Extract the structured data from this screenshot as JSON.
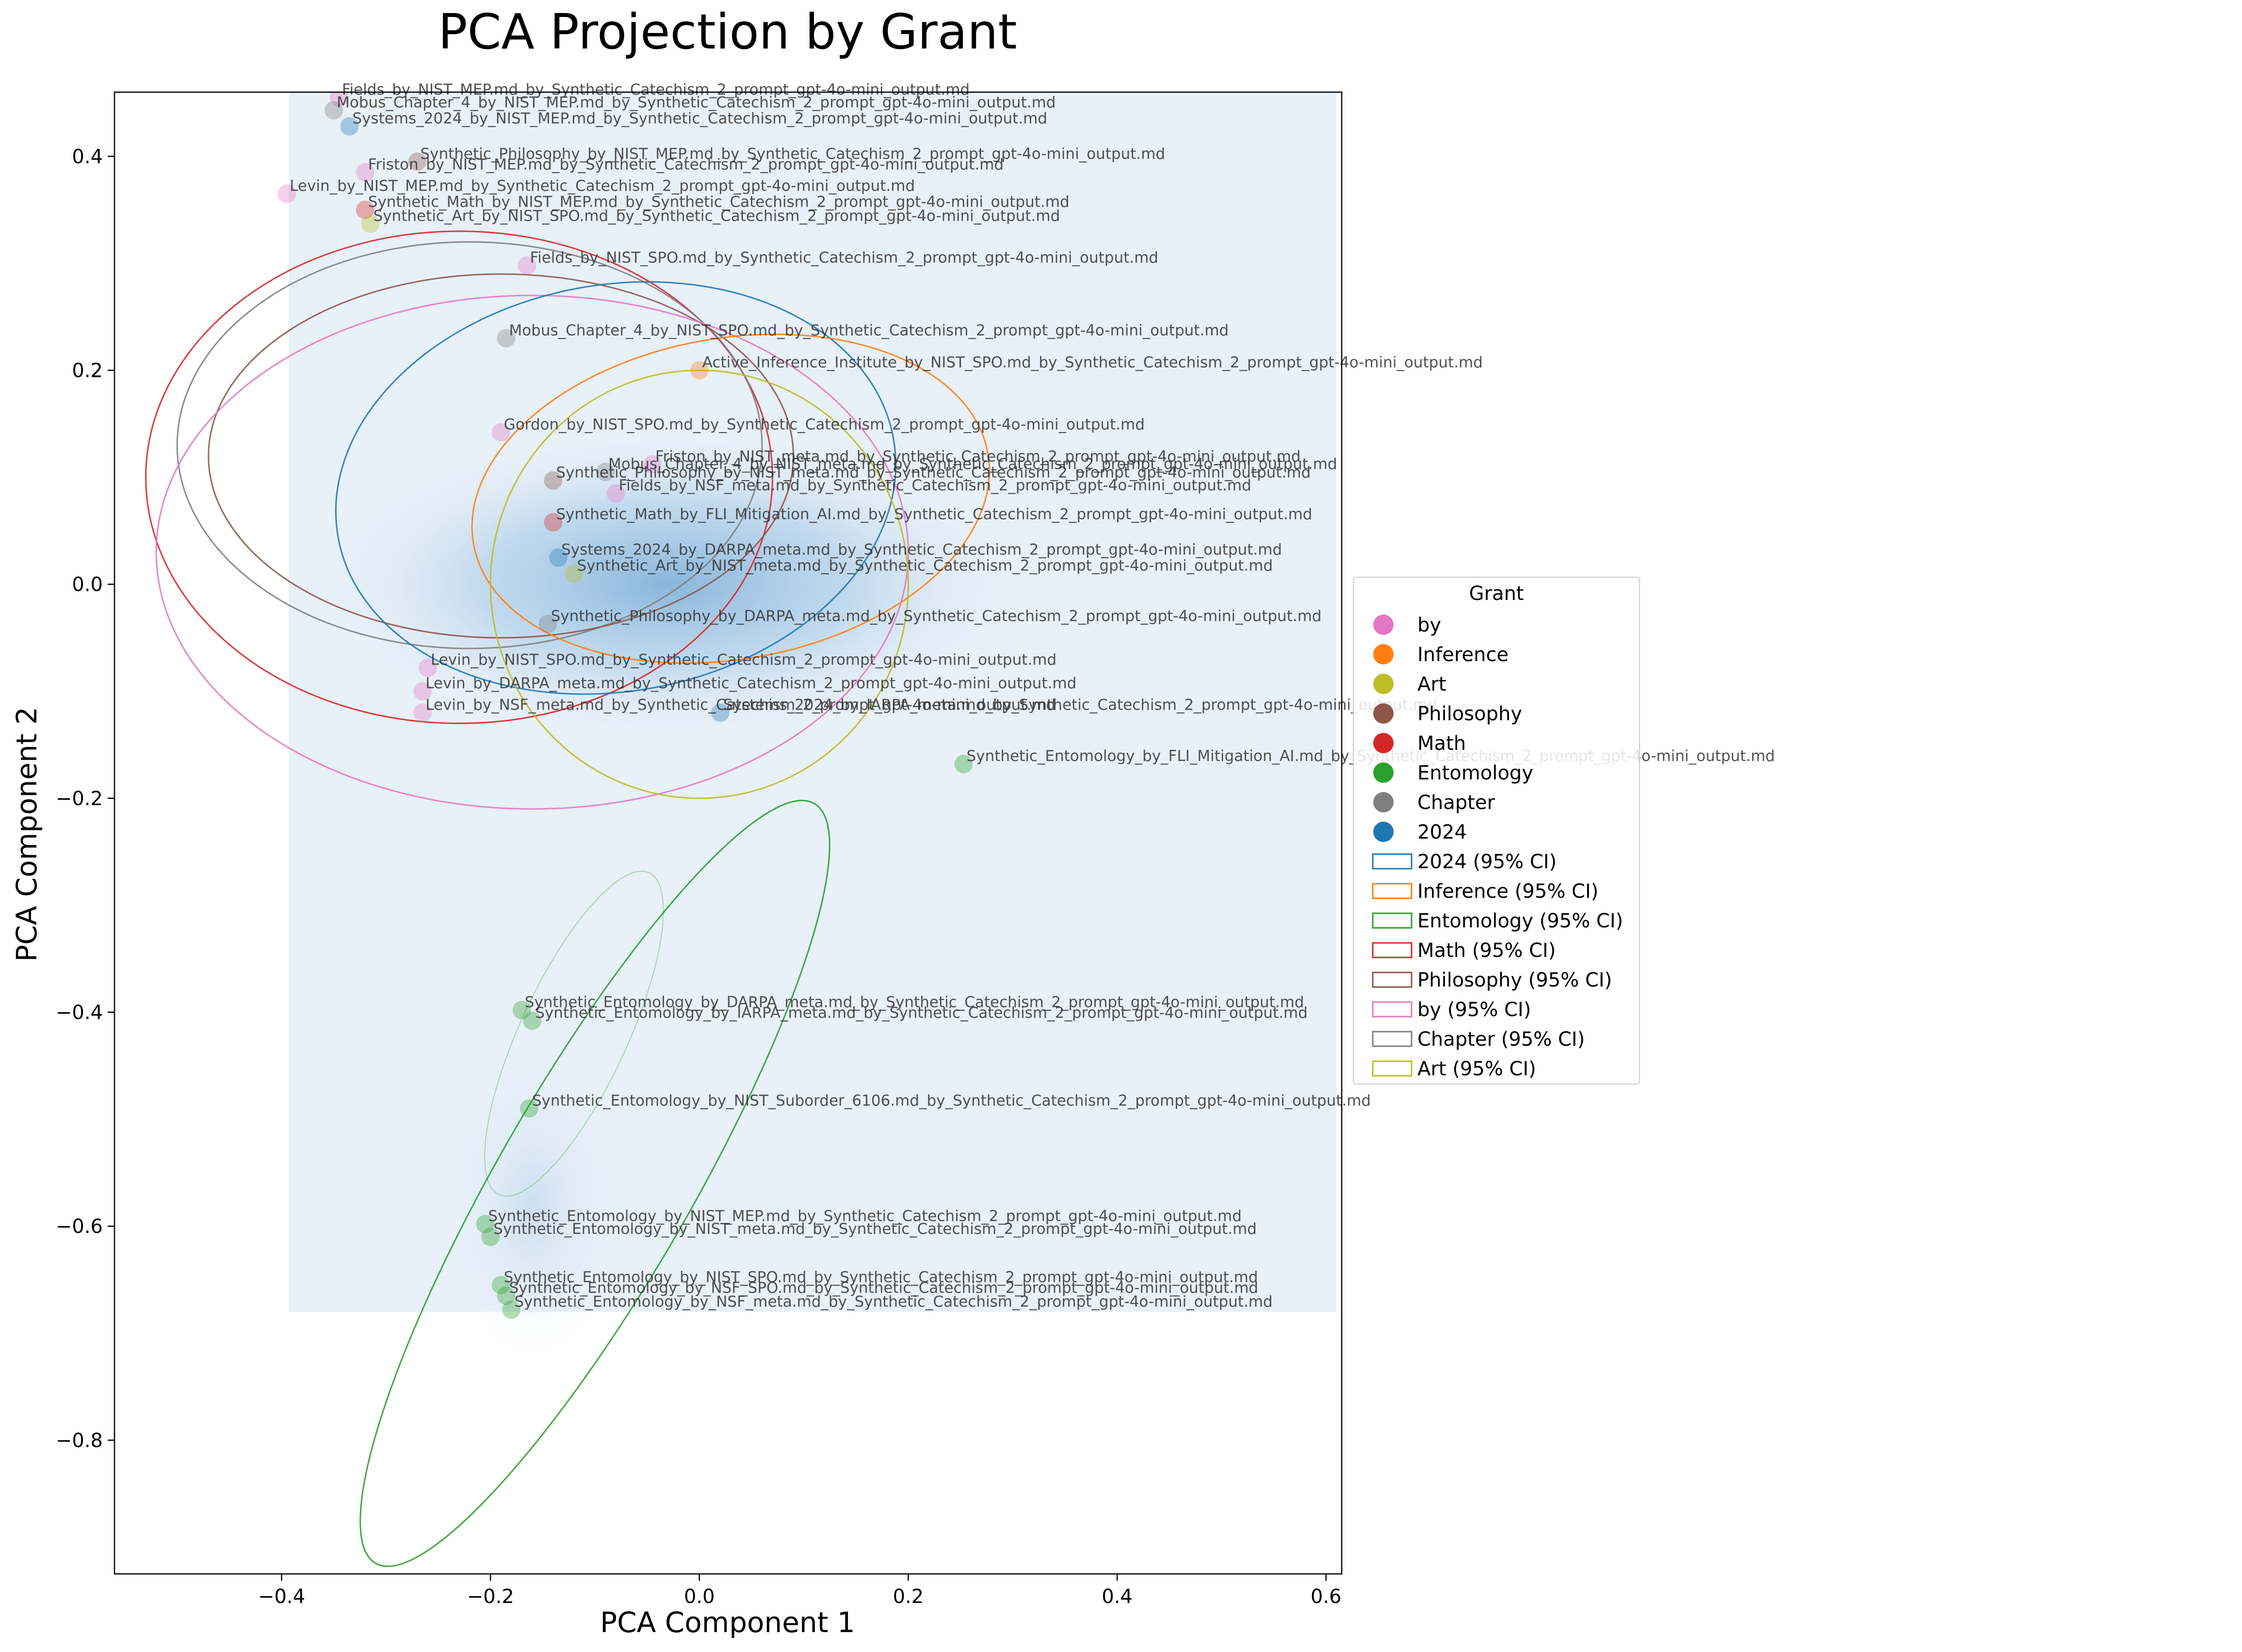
{
  "chart_data": {
    "type": "scatter",
    "title": "PCA Projection by Grant",
    "xlabel": "PCA Component 1",
    "ylabel": "PCA Component 2",
    "xlim": [
      -0.56,
      0.615
    ],
    "ylim": [
      -0.925,
      0.46
    ],
    "x_ticks": [
      -0.4,
      -0.2,
      0.0,
      0.2,
      0.4,
      0.6
    ],
    "x_tick_labels": [
      "−0.4",
      "−0.2",
      "0.0",
      "0.2",
      "0.4",
      "0.6"
    ],
    "y_ticks": [
      0.4,
      0.2,
      0.0,
      -0.2,
      -0.4,
      -0.6,
      -0.8
    ],
    "y_tick_labels": [
      "0.4",
      "0.2",
      "0.0",
      "−0.2",
      "−0.4",
      "−0.6",
      "−0.8"
    ],
    "grid": false,
    "legend": {
      "title": "Grant",
      "placement": "center-right",
      "entries": [
        "by",
        "Inference",
        "Art",
        "Philosophy",
        "Math",
        "Entomology",
        "Chapter",
        "2024"
      ],
      "ci_entries": [
        "2024 (95% CI)",
        "Inference (95% CI)",
        "Entomology (95% CI)",
        "Math (95% CI)",
        "Philosophy (95% CI)",
        "by (95% CI)",
        "Chapter (95% CI)",
        "Art (95% CI)"
      ]
    },
    "colors": {
      "by": "#e377c2",
      "Inference": "#ff7f0e",
      "Art": "#bcbd22",
      "Philosophy": "#8c564b",
      "Math": "#d62728",
      "Entomology": "#2ca02c",
      "Chapter": "#7f7f7f",
      "2024": "#1f77b4"
    },
    "density_region": {
      "x": [
        -0.393,
        0.61
      ],
      "y": [
        -0.68,
        0.46
      ]
    },
    "ellipses": [
      {
        "group": "Math",
        "cx": -0.23,
        "cy": 0.1,
        "rx": 0.3,
        "ry": 0.23,
        "angle": 0
      },
      {
        "group": "Chapter",
        "cx": -0.22,
        "cy": 0.13,
        "rx": 0.28,
        "ry": 0.19,
        "angle": 0
      },
      {
        "group": "Philosophy",
        "cx": -0.19,
        "cy": 0.12,
        "rx": 0.28,
        "ry": 0.17,
        "angle": 0
      },
      {
        "group": "by",
        "cx": -0.16,
        "cy": 0.03,
        "rx": 0.36,
        "ry": 0.24,
        "angle": 0
      },
      {
        "group": "2024",
        "cx": -0.08,
        "cy": 0.09,
        "rx": 0.27,
        "ry": 0.19,
        "angle": -10
      },
      {
        "group": "Inference",
        "cx": 0.03,
        "cy": 0.08,
        "rx": 0.25,
        "ry": 0.15,
        "angle": -10
      },
      {
        "group": "Art",
        "cx": 0.0,
        "cy": 0.0,
        "rx": 0.2,
        "ry": 0.2,
        "angle": 0
      },
      {
        "group": "Entomology",
        "cx": -0.1,
        "cy": -0.56,
        "rx": 0.42,
        "ry": 0.09,
        "angle": -60
      },
      {
        "group": "Entomology",
        "cx": -0.12,
        "cy": -0.42,
        "rx": 0.17,
        "ry": 0.05,
        "angle": -65,
        "faint": true
      }
    ],
    "points": [
      {
        "group": "by",
        "x": -0.395,
        "y": 0.365,
        "label": "Levin_by_NIST_MEP.md_by_Synthetic_Catechism_2_prompt_gpt-4o-mini_output.md"
      },
      {
        "group": "by",
        "x": -0.345,
        "y": 0.455,
        "label": "Fields_by_NIST_MEP.md_by_Synthetic_Catechism_2_prompt_gpt-4o-mini_output.md"
      },
      {
        "group": "Chapter",
        "x": -0.35,
        "y": 0.443,
        "label": "Mobus_Chapter_4_by_NIST_MEP.md_by_Synthetic_Catechism_2_prompt_gpt-4o-mini_output.md"
      },
      {
        "group": "2024",
        "x": -0.335,
        "y": 0.428,
        "label": "Systems_2024_by_NIST_MEP.md_by_Synthetic_Catechism_2_prompt_gpt-4o-mini_output.md"
      },
      {
        "group": "Philosophy",
        "x": -0.27,
        "y": 0.395,
        "label": "Synthetic_Philosophy_by_NIST_MEP.md_by_Synthetic_Catechism_2_prompt_gpt-4o-mini_output.md"
      },
      {
        "group": "by",
        "x": -0.32,
        "y": 0.385,
        "label": "Friston_by_NIST_MEP.md_by_Synthetic_Catechism_2_prompt_gpt-4o-mini_output.md"
      },
      {
        "group": "Math",
        "x": -0.32,
        "y": 0.35,
        "label": "Synthetic_Math_by_NIST_MEP.md_by_Synthetic_Catechism_2_prompt_gpt-4o-mini_output.md"
      },
      {
        "group": "Art",
        "x": -0.315,
        "y": 0.337,
        "label": "Synthetic_Art_by_NIST_SPO.md_by_Synthetic_Catechism_2_prompt_gpt-4o-mini_output.md"
      },
      {
        "group": "by",
        "x": -0.165,
        "y": 0.298,
        "label": "Fields_by_NIST_SPO.md_by_Synthetic_Catechism_2_prompt_gpt-4o-mini_output.md"
      },
      {
        "group": "Chapter",
        "x": -0.185,
        "y": 0.23,
        "label": "Mobus_Chapter_4_by_NIST_SPO.md_by_Synthetic_Catechism_2_prompt_gpt-4o-mini_output.md"
      },
      {
        "group": "Inference",
        "x": 0.0,
        "y": 0.2,
        "label": "Active_Inference_Institute_by_NIST_SPO.md_by_Synthetic_Catechism_2_prompt_gpt-4o-mini_output.md"
      },
      {
        "group": "by",
        "x": -0.19,
        "y": 0.142,
        "label": "Gordon_by_NIST_SPO.md_by_Synthetic_Catechism_2_prompt_gpt-4o-mini_output.md"
      },
      {
        "group": "by",
        "x": -0.045,
        "y": 0.112,
        "label": "Friston_by_NIST_meta.md_by_Synthetic_Catechism_2_prompt_gpt-4o-mini_output.md"
      },
      {
        "group": "Philosophy",
        "x": -0.14,
        "y": 0.097,
        "label": "Synthetic_Philosophy_by_NIST_meta.md_by_Synthetic_Catechism_2_prompt_gpt-4o-mini_output.md"
      },
      {
        "group": "Chapter",
        "x": -0.09,
        "y": 0.105,
        "label": "Mobus_Chapter_4_by_NIST_meta.md_by_Synthetic_Catechism_2_prompt_gpt-4o-mini_output.md"
      },
      {
        "group": "by",
        "x": -0.08,
        "y": 0.085,
        "label": "Fields_by_NSF_meta.md_by_Synthetic_Catechism_2_prompt_gpt-4o-mini_output.md"
      },
      {
        "group": "Math",
        "x": -0.14,
        "y": 0.058,
        "label": "Synthetic_Math_by_FLI_Mitigation_AI.md_by_Synthetic_Catechism_2_prompt_gpt-4o-mini_output.md"
      },
      {
        "group": "2024",
        "x": -0.135,
        "y": 0.025,
        "label": "Systems_2024_by_DARPA_meta.md_by_Synthetic_Catechism_2_prompt_gpt-4o-mini_output.md"
      },
      {
        "group": "Art",
        "x": -0.12,
        "y": 0.01,
        "label": "Synthetic_Art_by_NIST_meta.md_by_Synthetic_Catechism_2_prompt_gpt-4o-mini_output.md"
      },
      {
        "group": "Chapter",
        "x": -0.145,
        "y": -0.037,
        "label": "Synthetic_Philosophy_by_DARPA_meta.md_by_Synthetic_Catechism_2_prompt_gpt-4o-mini_output.md"
      },
      {
        "group": "by",
        "x": -0.26,
        "y": -0.078,
        "label": "Levin_by_NIST_SPO.md_by_Synthetic_Catechism_2_prompt_gpt-4o-mini_output.md"
      },
      {
        "group": "by",
        "x": -0.265,
        "y": -0.1,
        "label": "Levin_by_DARPA_meta.md_by_Synthetic_Catechism_2_prompt_gpt-4o-mini_output.md"
      },
      {
        "group": "by",
        "x": -0.265,
        "y": -0.12,
        "label": "Levin_by_NSF_meta.md_by_Synthetic_Catechism_2_prompt_gpt-4o-mini_output.md"
      },
      {
        "group": "2024",
        "x": 0.02,
        "y": -0.12,
        "label": "Systems_2024_by_IARPA_meta.md_by_Synthetic_Catechism_2_prompt_gpt-4o-mini_output.md"
      },
      {
        "group": "Entomology",
        "x": 0.253,
        "y": -0.168,
        "label": "Synthetic_Entomology_by_FLI_Mitigation_AI.md_by_Synthetic_Catechism_2_prompt_gpt-4o-mini_output.md"
      },
      {
        "group": "Entomology",
        "x": -0.17,
        "y": -0.398,
        "label": "Synthetic_Entomology_by_DARPA_meta.md_by_Synthetic_Catechism_2_prompt_gpt-4o-mini_output.md"
      },
      {
        "group": "Entomology",
        "x": -0.16,
        "y": -0.408,
        "label": "Synthetic_Entomology_by_IARPA_meta.md_by_Synthetic_Catechism_2_prompt_gpt-4o-mini_output.md"
      },
      {
        "group": "Entomology",
        "x": -0.163,
        "y": -0.49,
        "label": "Synthetic_Entomology_by_NIST_Suborder_6106.md_by_Synthetic_Catechism_2_prompt_gpt-4o-mini_output.md"
      },
      {
        "group": "Entomology",
        "x": -0.205,
        "y": -0.598,
        "label": "Synthetic_Entomology_by_NIST_MEP.md_by_Synthetic_Catechism_2_prompt_gpt-4o-mini_output.md"
      },
      {
        "group": "Entomology",
        "x": -0.2,
        "y": -0.61,
        "label": "Synthetic_Entomology_by_NIST_meta.md_by_Synthetic_Catechism_2_prompt_gpt-4o-mini_output.md"
      },
      {
        "group": "Entomology",
        "x": -0.19,
        "y": -0.655,
        "label": "Synthetic_Entomology_by_NIST_SPO.md_by_Synthetic_Catechism_2_prompt_gpt-4o-mini_output.md"
      },
      {
        "group": "Entomology",
        "x": -0.185,
        "y": -0.665,
        "label": "Synthetic_Entomology_by_NSF_SPO.md_by_Synthetic_Catechism_2_prompt_gpt-4o-mini_output.md"
      },
      {
        "group": "Entomology",
        "x": -0.18,
        "y": -0.678,
        "label": "Synthetic_Entomology_by_NSF_meta.md_by_Synthetic_Catechism_2_prompt_gpt-4o-mini_output.md"
      }
    ]
  }
}
